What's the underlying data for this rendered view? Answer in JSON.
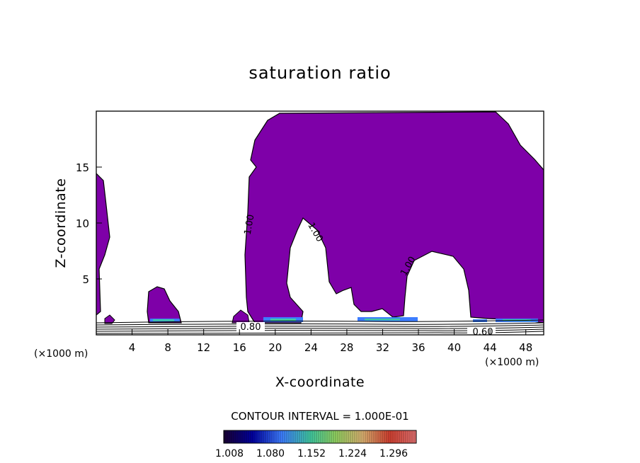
{
  "chart_data": {
    "type": "contour",
    "title": "saturation ratio",
    "xlabel": "X-coordinate",
    "ylabel": "Z-coordinate",
    "x_unit": "(×1000 m)",
    "xlim": [
      0,
      50
    ],
    "ylim": [
      0,
      20
    ],
    "x_ticks": [
      4,
      8,
      12,
      16,
      20,
      24,
      28,
      32,
      36,
      40,
      44,
      48
    ],
    "y_ticks": [
      5,
      10,
      15
    ],
    "contour_interval_text": "CONTOUR INTERVAL = 1.000E-01",
    "contour_labels": [
      "1.00",
      "1.00",
      "1.00",
      "0.80",
      "0.60"
    ],
    "colorbar": {
      "tick_labels": [
        "1.008",
        "1.080",
        "1.152",
        "1.224",
        "1.296"
      ],
      "colors": [
        "#1a0033",
        "#0000a0",
        "#3d7dff",
        "#40c8a0",
        "#90d060",
        "#d8b070",
        "#d04030",
        "#e07070"
      ]
    },
    "fill_color": "#7e00a8",
    "grid": false,
    "legend": "colorbar below"
  }
}
